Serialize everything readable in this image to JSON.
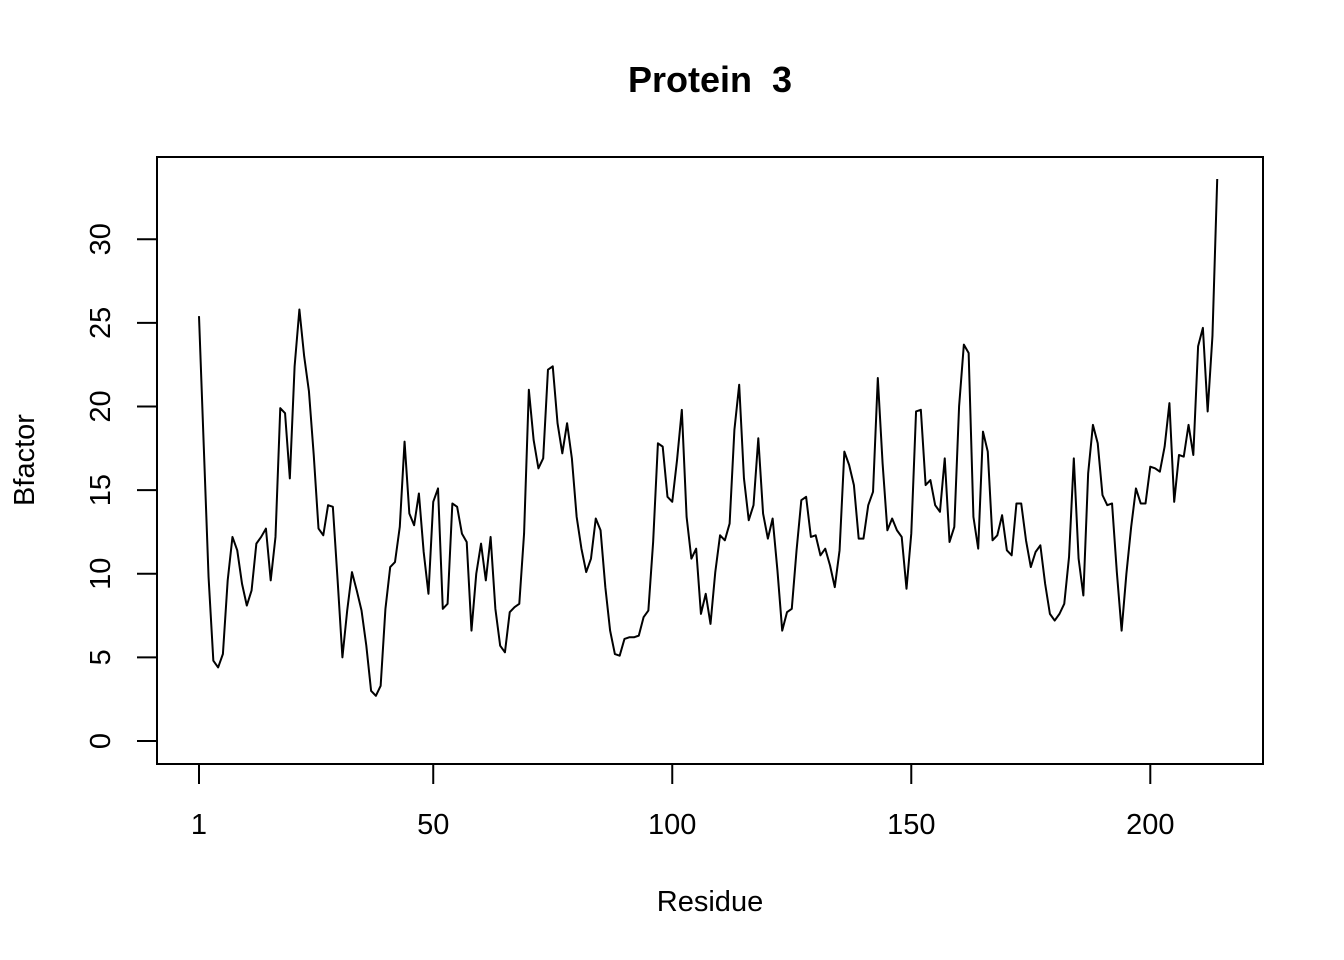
{
  "chart_data": {
    "type": "line",
    "title": "Protein  3",
    "xlabel": "Residue",
    "ylabel": "Bfactor",
    "xlim": [
      1,
      215
    ],
    "ylim": [
      0,
      33.6
    ],
    "x_ticks": [
      1,
      50,
      100,
      150,
      200
    ],
    "y_ticks": [
      0,
      5,
      10,
      15,
      20,
      25,
      30
    ],
    "grid": false,
    "legend": "none",
    "line_color": "#000000",
    "series": [
      {
        "values": [
          25.4,
          17.6,
          9.8,
          4.8,
          4.4,
          5.2,
          9.6,
          12.2,
          11.4,
          9.4,
          8.1,
          9.0,
          11.8,
          12.2,
          12.7,
          9.6,
          12.2,
          19.9,
          19.6,
          15.7,
          22.4,
          25.8,
          23.0,
          20.9,
          17.1,
          12.7,
          12.3,
          14.1,
          14.0,
          9.6,
          5.0,
          7.8,
          10.1,
          9.0,
          7.8,
          5.7,
          3.0,
          2.7,
          3.3,
          7.9,
          10.4,
          10.7,
          12.8,
          17.9,
          13.6,
          12.9,
          14.8,
          11.3,
          8.8,
          14.3,
          15.1,
          7.9,
          8.2,
          14.2,
          14.0,
          12.4,
          11.9,
          6.6,
          10.0,
          11.8,
          9.6,
          12.2,
          7.9,
          5.7,
          5.3,
          7.7,
          8.0,
          8.2,
          12.4,
          21.0,
          18.0,
          16.3,
          16.9,
          22.2,
          22.4,
          19.0,
          17.2,
          19.0,
          16.9,
          13.4,
          11.5,
          10.1,
          10.9,
          13.3,
          12.6,
          9.2,
          6.6,
          5.2,
          5.1,
          6.1,
          6.2,
          6.2,
          6.3,
          7.4,
          7.8,
          11.9,
          17.8,
          17.6,
          14.6,
          14.3,
          16.8,
          19.8,
          13.4,
          10.9,
          11.5,
          7.6,
          8.8,
          7.0,
          10.1,
          12.3,
          12.0,
          13.0,
          18.6,
          21.3,
          15.7,
          13.2,
          14.1,
          18.1,
          13.6,
          12.1,
          13.3,
          10.2,
          6.6,
          7.7,
          7.9,
          11.4,
          14.4,
          14.6,
          12.2,
          12.3,
          11.1,
          11.5,
          10.5,
          9.2,
          11.4,
          17.3,
          16.5,
          15.3,
          12.1,
          12.1,
          14.1,
          14.9,
          21.7,
          16.6,
          12.6,
          13.3,
          12.6,
          12.2,
          9.1,
          12.4,
          19.7,
          19.8,
          15.3,
          15.6,
          14.1,
          13.7,
          16.9,
          11.9,
          12.8,
          20.0,
          23.7,
          23.2,
          13.4,
          11.5,
          18.5,
          17.3,
          12.0,
          12.3,
          13.5,
          11.4,
          11.1,
          14.2,
          14.2,
          12.0,
          10.4,
          11.3,
          11.7,
          9.4,
          7.6,
          7.2,
          7.6,
          8.2,
          11.0,
          16.9,
          10.9,
          8.7,
          16.0,
          18.9,
          17.8,
          14.7,
          14.1,
          14.2,
          10.1,
          6.6,
          10.0,
          12.8,
          15.1,
          14.2,
          14.2,
          16.4,
          16.3,
          16.1,
          17.6,
          20.2,
          14.3,
          17.1,
          17.0,
          18.9,
          17.1,
          23.6,
          24.7,
          19.7,
          24.2,
          33.6
        ]
      }
    ]
  }
}
